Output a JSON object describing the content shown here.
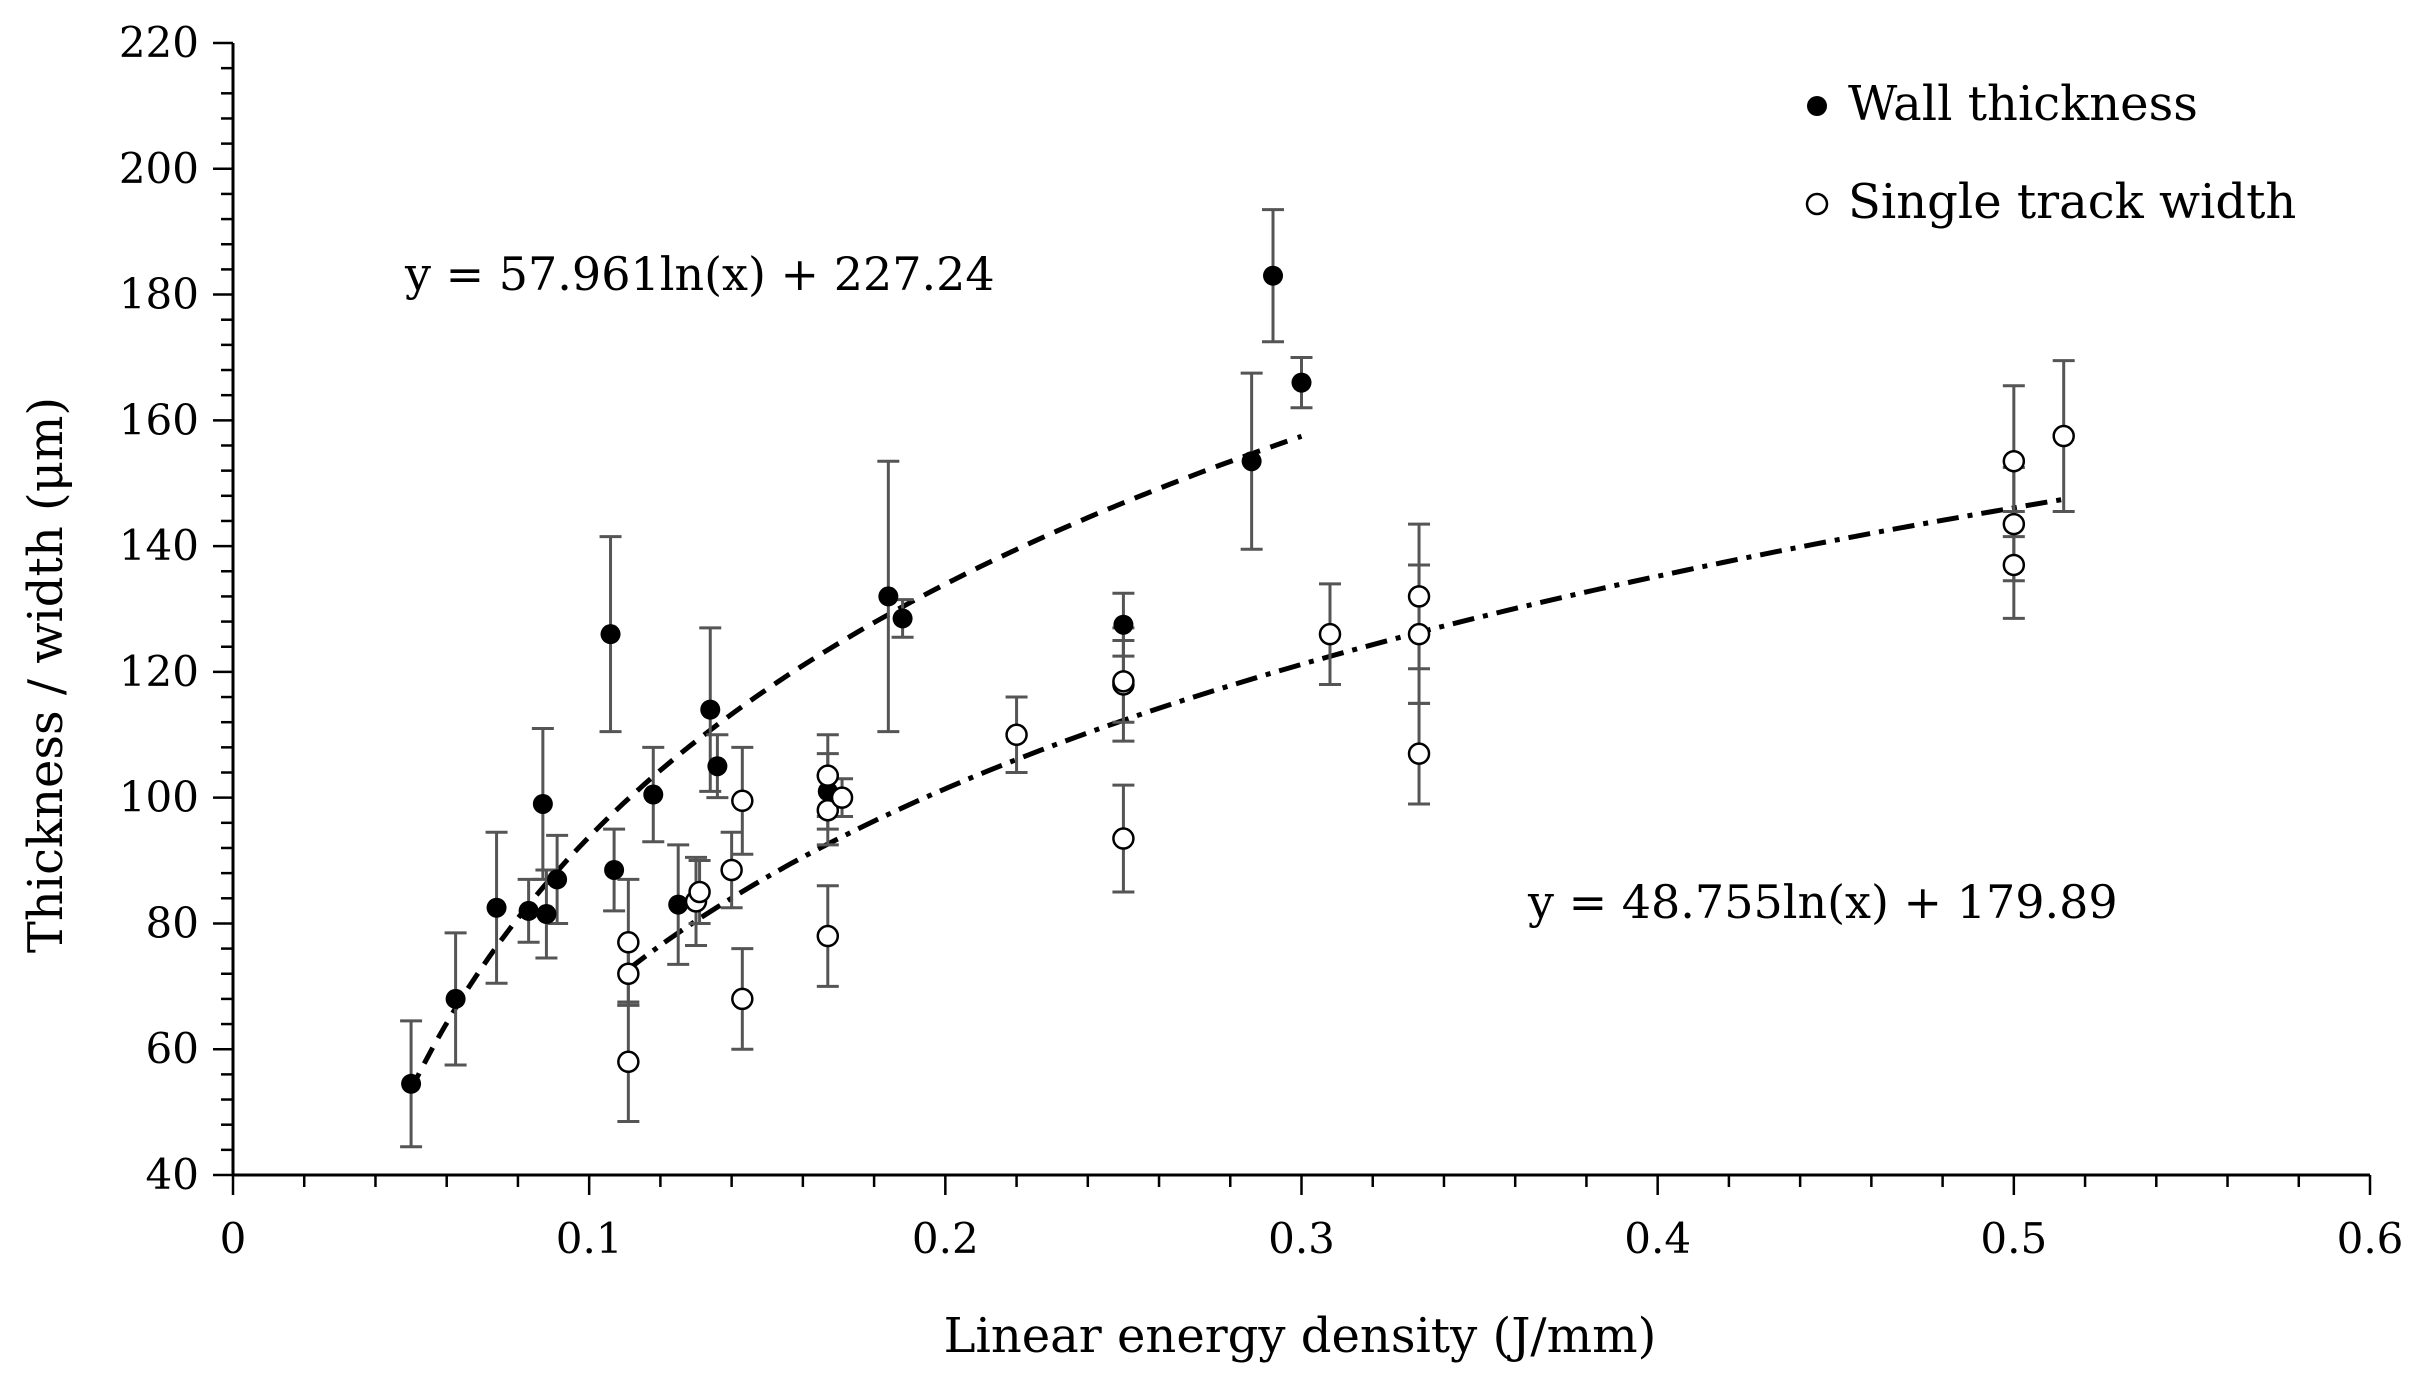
{
  "chart_data": {
    "type": "scatter",
    "title": "",
    "xlabel": "Linear energy density (J/mm)",
    "ylabel": "Thickness / width (μm)",
    "xlim": [
      0,
      0.6
    ],
    "ylim": [
      40,
      220
    ],
    "x_ticks": [
      0,
      0.1,
      0.2,
      0.3,
      0.4,
      0.5,
      0.6
    ],
    "x_tick_labels": [
      "0",
      "0.1",
      "0.2",
      "0.3",
      "0.4",
      "0.5",
      "0.6"
    ],
    "y_ticks": [
      40,
      60,
      80,
      100,
      120,
      140,
      160,
      180,
      200,
      220
    ],
    "y_tick_labels": [
      "40",
      "60",
      "80",
      "100",
      "120",
      "140",
      "160",
      "180",
      "200",
      "220"
    ],
    "grid": false,
    "legend_position": "top-right",
    "series": [
      {
        "name": "Wall thickness",
        "marker": "filled-circle",
        "color": "#000000",
        "points": [
          {
            "x": 0.05,
            "y": 54.5,
            "err": 10
          },
          {
            "x": 0.0625,
            "y": 68,
            "err": 10.5
          },
          {
            "x": 0.074,
            "y": 82.5,
            "err": 12
          },
          {
            "x": 0.083,
            "y": 82,
            "err": 5
          },
          {
            "x": 0.087,
            "y": 99,
            "err": 12
          },
          {
            "x": 0.088,
            "y": 81.5,
            "err": 7
          },
          {
            "x": 0.091,
            "y": 87,
            "err": 7
          },
          {
            "x": 0.107,
            "y": 88.5,
            "err": 6.5
          },
          {
            "x": 0.106,
            "y": 126,
            "err": 15.5
          },
          {
            "x": 0.118,
            "y": 100.5,
            "err": 7.5
          },
          {
            "x": 0.125,
            "y": 83,
            "err": 9.5
          },
          {
            "x": 0.134,
            "y": 114,
            "err": 13
          },
          {
            "x": 0.136,
            "y": 105,
            "err": 5
          },
          {
            "x": 0.167,
            "y": 101,
            "err": 6
          },
          {
            "x": 0.184,
            "y": 132,
            "err": 21.5
          },
          {
            "x": 0.188,
            "y": 128.5,
            "err": 3
          },
          {
            "x": 0.25,
            "y": 127.5,
            "err": 5
          },
          {
            "x": 0.286,
            "y": 153.5,
            "err": 14
          },
          {
            "x": 0.292,
            "y": 183,
            "err": 10.5
          },
          {
            "x": 0.3,
            "y": 166,
            "err": 4
          }
        ]
      },
      {
        "name": "Single track width",
        "marker": "open-circle",
        "color": "#000000",
        "points": [
          {
            "x": 0.111,
            "y": 58,
            "err": 9.5
          },
          {
            "x": 0.111,
            "y": 72,
            "err": 5
          },
          {
            "x": 0.111,
            "y": 77,
            "err": 10
          },
          {
            "x": 0.13,
            "y": 83.5,
            "err": 7
          },
          {
            "x": 0.131,
            "y": 85,
            "err": 5
          },
          {
            "x": 0.14,
            "y": 88.5,
            "err": 6
          },
          {
            "x": 0.143,
            "y": 68,
            "err": 8
          },
          {
            "x": 0.143,
            "y": 99.5,
            "err": 8.5
          },
          {
            "x": 0.167,
            "y": 78,
            "err": 8
          },
          {
            "x": 0.167,
            "y": 98,
            "err": 5.5
          },
          {
            "x": 0.167,
            "y": 103.5,
            "err": 6.5
          },
          {
            "x": 0.171,
            "y": 100,
            "err": 3
          },
          {
            "x": 0.22,
            "y": 110,
            "err": 6
          },
          {
            "x": 0.25,
            "y": 93.5,
            "err": 8.5
          },
          {
            "x": 0.25,
            "y": 118,
            "err": 9
          },
          {
            "x": 0.25,
            "y": 118.5,
            "err": 6.5
          },
          {
            "x": 0.308,
            "y": 126,
            "err": 8
          },
          {
            "x": 0.333,
            "y": 107,
            "err": 8
          },
          {
            "x": 0.333,
            "y": 126,
            "err": 11
          },
          {
            "x": 0.333,
            "y": 132,
            "err": 11.5
          },
          {
            "x": 0.5,
            "y": 137,
            "err": 8.5
          },
          {
            "x": 0.5,
            "y": 143.5,
            "err": 9
          },
          {
            "x": 0.5,
            "y": 153.5,
            "err": 12
          },
          {
            "x": 0.514,
            "y": 157.5,
            "err": 12
          }
        ]
      }
    ],
    "trendlines": [
      {
        "series": "Wall thickness",
        "equation": "y = 57.961ln(x) + 227.24",
        "a": 57.961,
        "b": 227.24,
        "x_range": [
          0.05,
          0.3
        ],
        "style": "dashed"
      },
      {
        "series": "Single track width",
        "equation": "y = 48.755ln(x) + 179.89",
        "a": 48.755,
        "b": 179.89,
        "x_range": [
          0.111,
          0.514
        ],
        "style": "dash-dot"
      }
    ]
  }
}
